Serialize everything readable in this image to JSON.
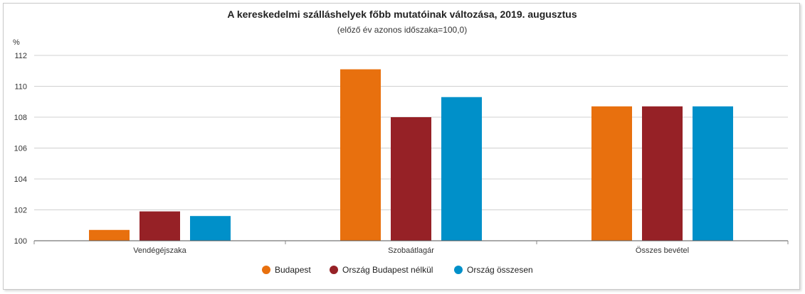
{
  "chart_data": {
    "type": "bar",
    "title": "A kereskedelmi szálláshelyek főbb mutatóinak változása, 2019. augusztus",
    "subtitle": "(előző év azonos időszaka=100,0)",
    "ylabel": "%",
    "xlabel": "",
    "ylim": [
      100,
      112
    ],
    "yticks": [
      "100",
      "102",
      "104",
      "106",
      "108",
      "110",
      "112"
    ],
    "categories": [
      "Vendégéjszaka",
      "Szobaátlagár",
      "Összes bevétel"
    ],
    "grid": true,
    "legend_position": "bottom",
    "series": [
      {
        "name": "Budapest",
        "color": "#e8700e",
        "values": [
          100.7,
          111.1,
          108.7
        ]
      },
      {
        "name": "Ország Budapest nélkül",
        "color": "#962126",
        "values": [
          101.9,
          108.0,
          108.7
        ]
      },
      {
        "name": "Ország összesen",
        "color": "#0090c9",
        "values": [
          101.6,
          109.3,
          108.7
        ]
      }
    ]
  }
}
